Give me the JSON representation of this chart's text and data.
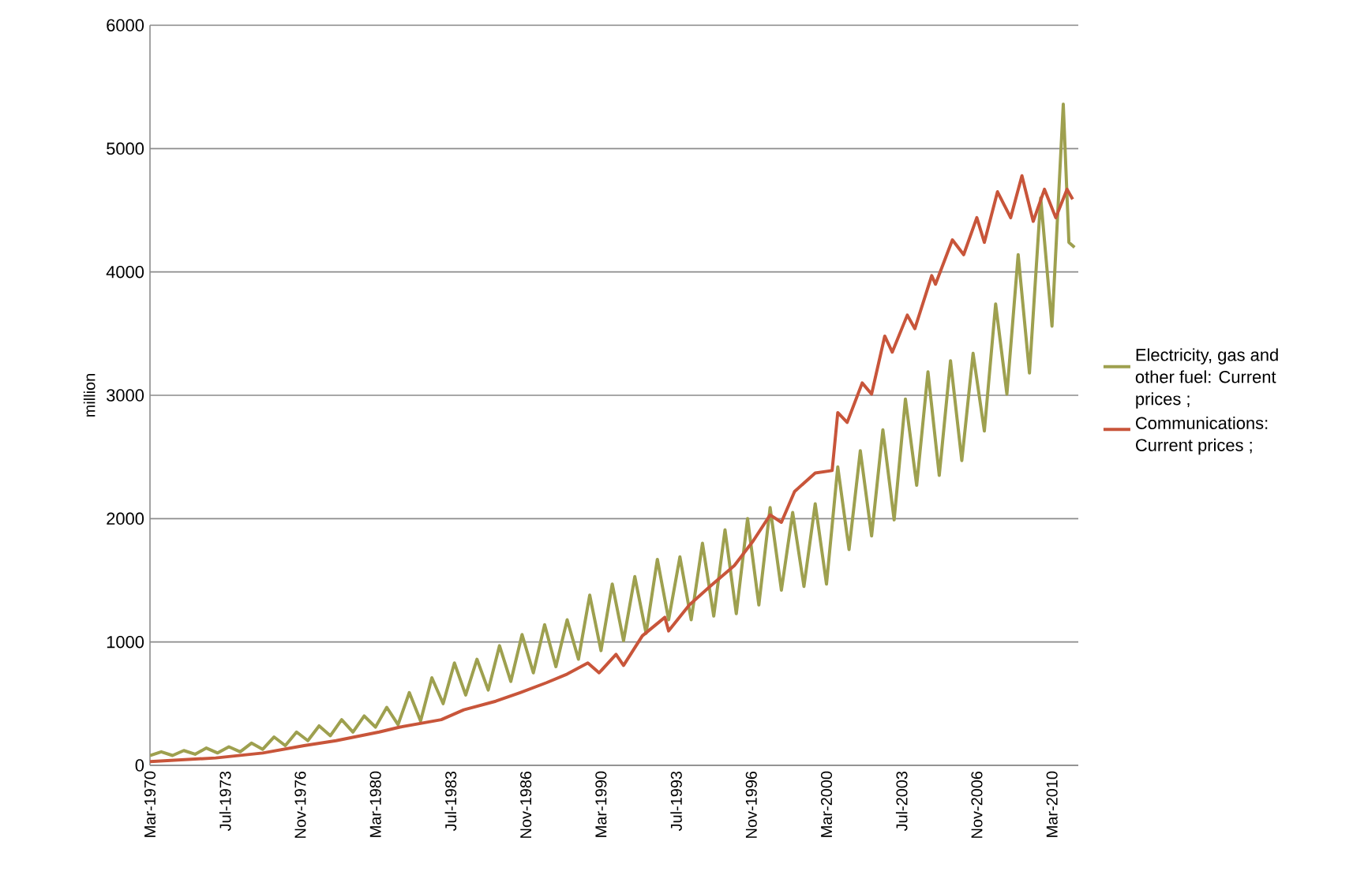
{
  "chart_data": {
    "type": "line",
    "ylabel": "million",
    "ylim": [
      0,
      6000
    ],
    "yticks": [
      0,
      1000,
      2000,
      3000,
      4000,
      5000,
      6000
    ],
    "xlim": [
      "1970-03",
      "2011-05"
    ],
    "xticks": [
      {
        "value": "1970-03",
        "label": "Mar-1970"
      },
      {
        "value": "1973-07",
        "label": "Jul-1973"
      },
      {
        "value": "1976-11",
        "label": "Nov-1976"
      },
      {
        "value": "1980-03",
        "label": "Mar-1980"
      },
      {
        "value": "1983-07",
        "label": "Jul-1983"
      },
      {
        "value": "1986-11",
        "label": "Nov-1986"
      },
      {
        "value": "1990-03",
        "label": "Mar-1990"
      },
      {
        "value": "1993-07",
        "label": "Jul-1993"
      },
      {
        "value": "1996-11",
        "label": "Nov-1996"
      },
      {
        "value": "2000-03",
        "label": "Mar-2000"
      },
      {
        "value": "2003-07",
        "label": "Jul-2003"
      },
      {
        "value": "2006-11",
        "label": "Nov-2006"
      },
      {
        "value": "2010-03",
        "label": "Mar-2010"
      }
    ],
    "grid": "y",
    "legend": "right",
    "marker": "none",
    "line_style": "solid",
    "series": [
      {
        "name": "Electricity, gas and other fuel: Current prices ;",
        "color": "#9ea04f",
        "x": [
          "1970-03",
          "1970-09",
          "1971-03",
          "1971-09",
          "1972-03",
          "1972-09",
          "1973-03",
          "1973-09",
          "1974-03",
          "1974-09",
          "1975-03",
          "1975-09",
          "1976-03",
          "1976-09",
          "1977-03",
          "1977-09",
          "1978-03",
          "1978-09",
          "1979-03",
          "1979-09",
          "1980-03",
          "1980-09",
          "1981-03",
          "1981-09",
          "1982-03",
          "1982-09",
          "1983-03",
          "1983-09",
          "1984-03",
          "1984-09",
          "1985-03",
          "1985-09",
          "1986-03",
          "1986-09",
          "1987-03",
          "1987-09",
          "1988-03",
          "1988-09",
          "1989-03",
          "1989-09",
          "1990-03",
          "1990-09",
          "1991-03",
          "1991-09",
          "1992-03",
          "1992-09",
          "1993-03",
          "1993-09",
          "1994-03",
          "1994-09",
          "1995-03",
          "1995-09",
          "1996-03",
          "1996-09",
          "1997-03",
          "1997-09",
          "1998-03",
          "1998-09",
          "1999-03",
          "1999-09",
          "2000-03",
          "2000-09",
          "2001-03",
          "2001-09",
          "2002-03",
          "2002-09",
          "2003-03",
          "2003-09",
          "2004-03",
          "2004-09",
          "2005-03",
          "2005-09",
          "2006-03",
          "2006-09",
          "2007-03",
          "2007-09",
          "2008-03",
          "2008-09",
          "2009-03",
          "2009-09",
          "2010-03",
          "2010-09",
          "2010-12",
          "2011-03"
        ],
        "values": [
          80,
          110,
          80,
          120,
          90,
          140,
          100,
          150,
          110,
          180,
          130,
          230,
          160,
          270,
          200,
          320,
          240,
          370,
          270,
          400,
          310,
          470,
          330,
          590,
          360,
          710,
          500,
          830,
          570,
          860,
          610,
          970,
          680,
          1060,
          750,
          1140,
          800,
          1180,
          860,
          1380,
          930,
          1470,
          1010,
          1530,
          1070,
          1670,
          1180,
          1690,
          1180,
          1800,
          1210,
          1910,
          1230,
          2000,
          1300,
          2090,
          1420,
          2050,
          1450,
          2120,
          1470,
          2420,
          1750,
          2550,
          1860,
          2720,
          1990,
          2970,
          2270,
          3190,
          2350,
          3280,
          2470,
          3340,
          2710,
          3740,
          3010,
          4140,
          3180,
          4600,
          3560,
          5360,
          4240,
          4200
        ]
      },
      {
        "name": "Communications: Current prices ;",
        "color": "#c8553a",
        "x": [
          "1970-03",
          "1973-02",
          "1975-03",
          "1977-01",
          "1978-06",
          "1980-05",
          "1981-04",
          "1983-02",
          "1984-02",
          "1985-07",
          "1986-08",
          "1987-10",
          "1988-09",
          "1989-08",
          "1990-02",
          "1990-11",
          "1991-03",
          "1992-01",
          "1993-01",
          "1993-03",
          "1994-02",
          "1995-01",
          "1996-02",
          "1996-12",
          "1997-09",
          "1998-03",
          "1998-10",
          "1999-09",
          "2000-06",
          "2000-09",
          "2001-02",
          "2001-10",
          "2002-03",
          "2002-10",
          "2003-02",
          "2003-10",
          "2004-02",
          "2004-11",
          "2005-01",
          "2005-10",
          "2006-04",
          "2006-11",
          "2007-03",
          "2007-10",
          "2008-05",
          "2008-11",
          "2009-05",
          "2009-11",
          "2010-05",
          "2010-11",
          "2011-02"
        ],
        "values": [
          30,
          60,
          100,
          160,
          200,
          270,
          310,
          370,
          450,
          520,
          590,
          670,
          740,
          830,
          750,
          900,
          810,
          1050,
          1200,
          1090,
          1300,
          1450,
          1620,
          1820,
          2030,
          1970,
          2220,
          2370,
          2390,
          2860,
          2780,
          3100,
          3010,
          3480,
          3350,
          3650,
          3540,
          3970,
          3900,
          4260,
          4140,
          4440,
          4240,
          4650,
          4440,
          4780,
          4410,
          4670,
          4440,
          4670,
          4590
        ]
      }
    ]
  }
}
